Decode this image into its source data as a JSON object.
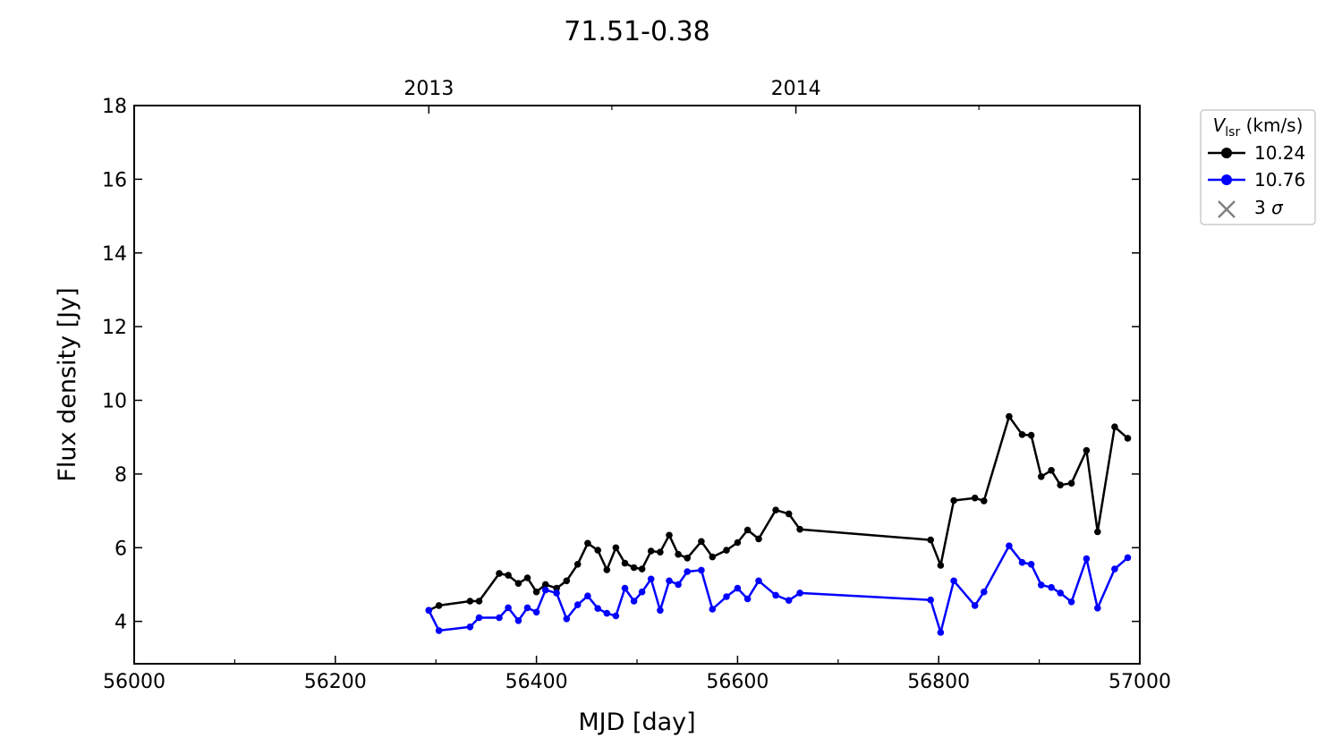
{
  "chart_data": {
    "type": "line",
    "title": "71.51-0.38",
    "xlabel": "MJD [day]",
    "ylabel": "Flux density [Jy]",
    "xlim": [
      56000,
      57000
    ],
    "ylim": [
      2.85,
      18
    ],
    "x_ticks": [
      56000,
      56200,
      56400,
      56600,
      56800,
      57000
    ],
    "x_minor_ticks": [
      56100,
      56300,
      56500,
      56700,
      56900
    ],
    "y_ticks": [
      4,
      6,
      8,
      10,
      12,
      14,
      16,
      18
    ],
    "top_axis": {
      "ticks": [
        {
          "label": "2013",
          "x": 56293
        },
        {
          "label": "2014",
          "x": 56658
        }
      ],
      "minor_ticks": [
        56475,
        56840
      ]
    },
    "legend": {
      "title_symbol": "V",
      "title_subscript": "lsr",
      "title_unit": " (km/s)",
      "placement": "outside-upper-right",
      "entries": [
        "10.24",
        "10.76",
        "3 σ"
      ]
    },
    "grid": false,
    "series": [
      {
        "name": "10.24",
        "color": "#000000",
        "marker": "circle",
        "points": [
          [
            56293,
            4.3
          ],
          [
            56303,
            4.43
          ],
          [
            56334,
            4.55
          ],
          [
            56343,
            4.55
          ],
          [
            56363,
            5.3
          ],
          [
            56372,
            5.25
          ],
          [
            56382,
            5.03
          ],
          [
            56391,
            5.18
          ],
          [
            56400,
            4.8
          ],
          [
            56409,
            5.0
          ],
          [
            56420,
            4.9
          ],
          [
            56430,
            5.1
          ],
          [
            56441,
            5.55
          ],
          [
            56451,
            6.12
          ],
          [
            56461,
            5.93
          ],
          [
            56470,
            5.4
          ],
          [
            56479,
            6.0
          ],
          [
            56488,
            5.58
          ],
          [
            56497,
            5.46
          ],
          [
            56505,
            5.42
          ],
          [
            56514,
            5.91
          ],
          [
            56523,
            5.88
          ],
          [
            56532,
            6.34
          ],
          [
            56541,
            5.82
          ],
          [
            56550,
            5.72
          ],
          [
            56564,
            6.17
          ],
          [
            56575,
            5.75
          ],
          [
            56589,
            5.93
          ],
          [
            56600,
            6.14
          ],
          [
            56610,
            6.48
          ],
          [
            56621,
            6.24
          ],
          [
            56638,
            7.02
          ],
          [
            56651,
            6.92
          ],
          [
            56662,
            6.5
          ],
          [
            56792,
            6.21
          ],
          [
            56802,
            5.52
          ],
          [
            56815,
            7.28
          ],
          [
            56836,
            7.35
          ],
          [
            56845,
            7.27
          ],
          [
            56870,
            9.56
          ],
          [
            56883,
            9.07
          ],
          [
            56892,
            9.05
          ],
          [
            56902,
            7.93
          ],
          [
            56912,
            8.1
          ],
          [
            56921,
            7.7
          ],
          [
            56932,
            7.75
          ],
          [
            56947,
            8.64
          ],
          [
            56958,
            6.43
          ],
          [
            56975,
            9.28
          ],
          [
            56988,
            8.97
          ]
        ]
      },
      {
        "name": "10.76",
        "color": "#0000ff",
        "marker": "circle",
        "points": [
          [
            56293,
            4.3
          ],
          [
            56303,
            3.75
          ],
          [
            56334,
            3.85
          ],
          [
            56343,
            4.1
          ],
          [
            56363,
            4.1
          ],
          [
            56372,
            4.37
          ],
          [
            56382,
            4.02
          ],
          [
            56391,
            4.37
          ],
          [
            56400,
            4.25
          ],
          [
            56409,
            4.85
          ],
          [
            56420,
            4.77
          ],
          [
            56430,
            4.07
          ],
          [
            56441,
            4.45
          ],
          [
            56451,
            4.69
          ],
          [
            56461,
            4.35
          ],
          [
            56470,
            4.22
          ],
          [
            56479,
            4.15
          ],
          [
            56488,
            4.9
          ],
          [
            56497,
            4.55
          ],
          [
            56505,
            4.8
          ],
          [
            56514,
            5.15
          ],
          [
            56523,
            4.3
          ],
          [
            56532,
            5.1
          ],
          [
            56541,
            5.0
          ],
          [
            56550,
            5.35
          ],
          [
            56564,
            5.39
          ],
          [
            56575,
            4.33
          ],
          [
            56589,
            4.67
          ],
          [
            56600,
            4.9
          ],
          [
            56610,
            4.61
          ],
          [
            56621,
            5.1
          ],
          [
            56638,
            4.71
          ],
          [
            56651,
            4.57
          ],
          [
            56662,
            4.77
          ],
          [
            56792,
            4.58
          ],
          [
            56802,
            3.7
          ],
          [
            56815,
            5.1
          ],
          [
            56836,
            4.43
          ],
          [
            56845,
            4.8
          ],
          [
            56870,
            6.05
          ],
          [
            56883,
            5.6
          ],
          [
            56892,
            5.55
          ],
          [
            56902,
            4.99
          ],
          [
            56912,
            4.92
          ],
          [
            56921,
            4.77
          ],
          [
            56932,
            4.53
          ],
          [
            56947,
            5.7
          ],
          [
            56958,
            4.36
          ],
          [
            56975,
            5.42
          ],
          [
            56988,
            5.73
          ]
        ]
      }
    ]
  }
}
